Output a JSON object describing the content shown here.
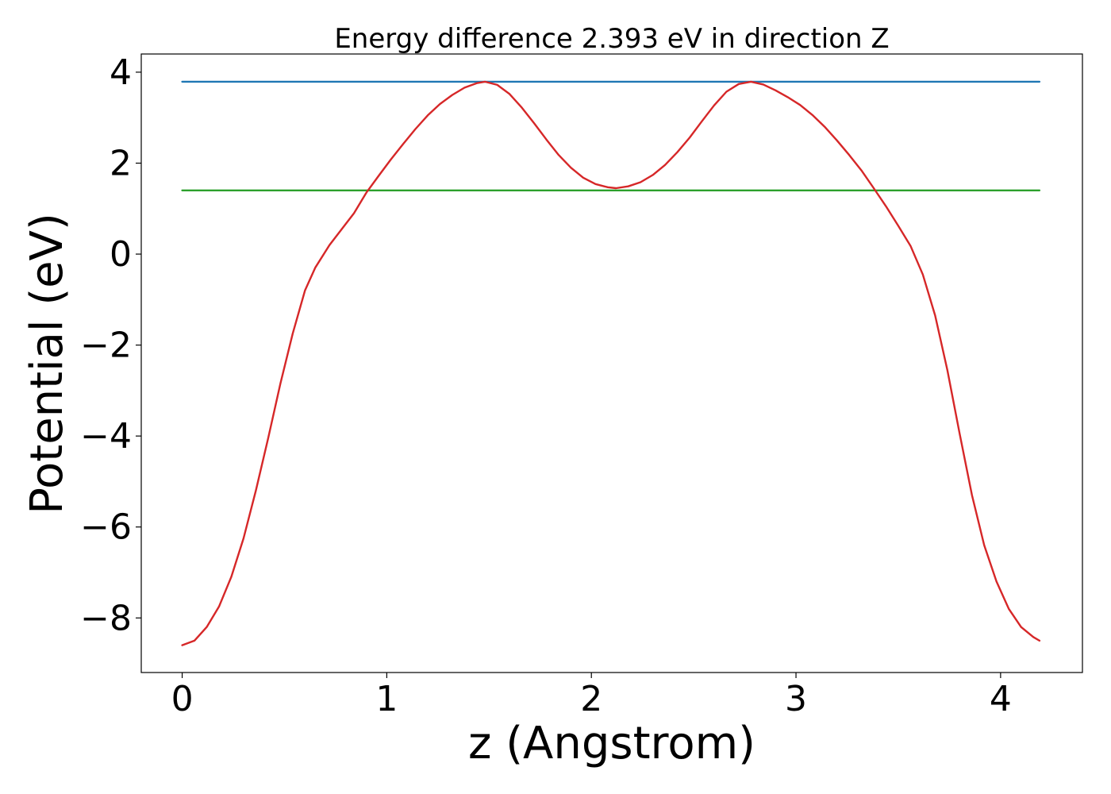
{
  "chart_data": {
    "type": "line",
    "title": "Energy difference 2.393 eV in direction Z",
    "xlabel": "z (Angstrom)",
    "ylabel": "Potential (eV)",
    "xlim": [
      -0.2,
      4.4
    ],
    "ylim": [
      -9.2,
      4.4
    ],
    "xticks": [
      0,
      1,
      2,
      3,
      4
    ],
    "xtick_labels": [
      "0",
      "1",
      "2",
      "3",
      "4"
    ],
    "yticks": [
      -8,
      -6,
      -4,
      -2,
      0,
      2,
      4
    ],
    "ytick_labels": [
      "−8",
      "−6",
      "−4",
      "−2",
      "0",
      "2",
      "4"
    ],
    "grid": false,
    "series": [
      {
        "color": "#1f77b4",
        "x": [
          0,
          4.19
        ],
        "y": [
          3.79,
          3.79
        ]
      },
      {
        "color": "#2ca02c",
        "x": [
          0,
          4.19
        ],
        "y": [
          1.4,
          1.4
        ]
      },
      {
        "color": "#d62728",
        "x": [
          0,
          0.06,
          0.12,
          0.18,
          0.24,
          0.3,
          0.36,
          0.42,
          0.48,
          0.54,
          0.6,
          0.65,
          0.72,
          0.78,
          0.84,
          0.9,
          0.96,
          1.02,
          1.08,
          1.14,
          1.2,
          1.26,
          1.32,
          1.38,
          1.44,
          1.48,
          1.54,
          1.6,
          1.66,
          1.72,
          1.78,
          1.84,
          1.9,
          1.96,
          2.02,
          2.08,
          2.12,
          2.18,
          2.24,
          2.3,
          2.36,
          2.42,
          2.48,
          2.54,
          2.6,
          2.66,
          2.72,
          2.78,
          2.84,
          2.9,
          2.96,
          3.02,
          3.08,
          3.14,
          3.2,
          3.26,
          3.32,
          3.38,
          3.44,
          3.5,
          3.56,
          3.62,
          3.68,
          3.74,
          3.8,
          3.86,
          3.92,
          3.98,
          4.04,
          4.1,
          4.16,
          4.19
        ],
        "y": [
          -8.6,
          -8.5,
          -8.2,
          -7.75,
          -7.1,
          -6.25,
          -5.2,
          -4.05,
          -2.85,
          -1.75,
          -0.8,
          -0.3,
          0.2,
          0.55,
          0.9,
          1.35,
          1.72,
          2.08,
          2.42,
          2.75,
          3.05,
          3.3,
          3.5,
          3.66,
          3.76,
          3.79,
          3.72,
          3.52,
          3.22,
          2.88,
          2.52,
          2.18,
          1.9,
          1.68,
          1.54,
          1.47,
          1.45,
          1.49,
          1.58,
          1.74,
          1.96,
          2.24,
          2.56,
          2.92,
          3.27,
          3.57,
          3.74,
          3.79,
          3.73,
          3.6,
          3.45,
          3.28,
          3.06,
          2.8,
          2.5,
          2.18,
          1.84,
          1.45,
          1.05,
          0.62,
          0.18,
          -0.45,
          -1.35,
          -2.55,
          -3.95,
          -5.3,
          -6.4,
          -7.2,
          -7.8,
          -8.2,
          -8.42,
          -8.5
        ]
      }
    ]
  }
}
